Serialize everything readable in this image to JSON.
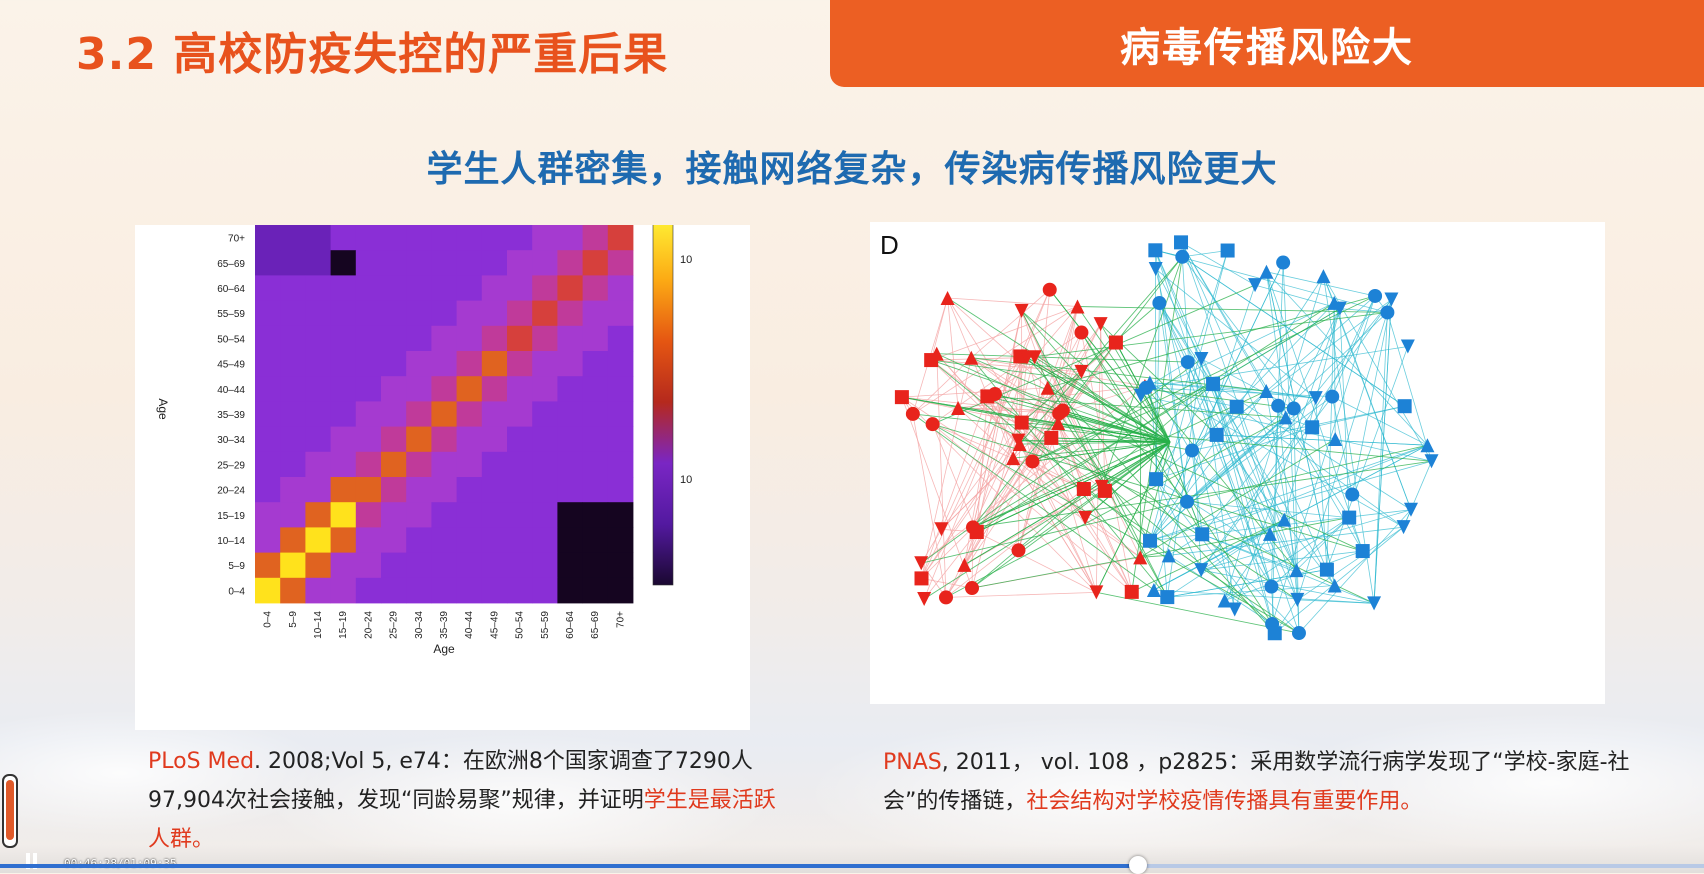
{
  "slide": {
    "title": "3.2 高校防疫失控的严重后果",
    "banner": "病毒传播风险大",
    "subtitle": "学生人群密集，接触网络复杂，传染病传播风险更大"
  },
  "left_figure": {
    "chart_data": {
      "type": "heatmap",
      "xlabel": "Age",
      "ylabel": "Age",
      "x_categories": [
        "0–4",
        "5–9",
        "10–14",
        "15–19",
        "20–24",
        "25–29",
        "30–34",
        "35–39",
        "40–44",
        "45–49",
        "50–54",
        "55–59",
        "60–64",
        "65–69",
        "70+"
      ],
      "y_categories": [
        "70+",
        "65–69",
        "60–64",
        "55–59",
        "50–54",
        "45–49",
        "40–44",
        "35–39",
        "30–34",
        "25–29",
        "20–24",
        "15–19",
        "10–14",
        "5–9",
        "0–4"
      ],
      "colorbar_ticks": [
        "10",
        "10"
      ],
      "colorbar_colors": [
        "#fff034",
        "#fcaa14",
        "#e55612",
        "#b5291d",
        "#7a26c4",
        "#5319a0",
        "#1a0830"
      ]
    }
  },
  "right_figure": {
    "panel_label": "D",
    "colors": {
      "red": "#e8241c",
      "blue": "#1d82d6",
      "green": "#28b04a",
      "cyan": "#2bb8cf",
      "pink": "#f4a6a6"
    }
  },
  "captions": {
    "left": {
      "source": "PLoS Med",
      "text1": ". 2008;Vol 5, e74：在欧洲8个国家调查了7290人97,904次社会接触，发现“同龄易聚”规律，并证明",
      "highlight": "学生是最活跃人群。"
    },
    "right": {
      "source": "PNAS",
      "text1": ", 2011， vol. 108 ，p2825：采用数学流行病学发现了“学校-家庭-社会”的传播链，",
      "highlight": "社会结构对学校疫情传播具有重要作用。"
    }
  },
  "player": {
    "timecode": "00:46:28/01:09:35",
    "progress": 0.668
  }
}
